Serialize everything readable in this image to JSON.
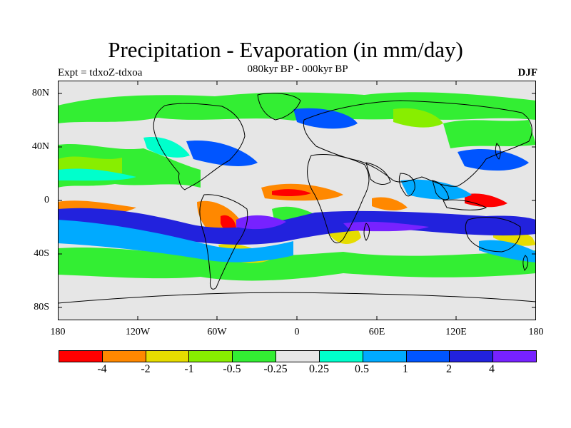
{
  "title": "Precipitation - Evaporation (in mm/day)",
  "subtitle": "080kyr BP - 000kyr BP",
  "expt_label": "Expt = tdxoZ-tdxoa",
  "season": "DJF",
  "lat_labels": [
    "80N",
    "40N",
    "0",
    "40S",
    "80S"
  ],
  "lon_labels": [
    "180",
    "120W",
    "60W",
    "0",
    "60E",
    "120E",
    "180"
  ],
  "colorbar": {
    "colors": [
      "#ff0000",
      "#ff8800",
      "#e6dc00",
      "#88ee00",
      "#33ee33",
      "#e6e6e6",
      "#00ffcc",
      "#00aaff",
      "#0055ff",
      "#2222dd",
      "#7722ff"
    ],
    "labels": [
      "-4",
      "-2",
      "-1",
      "-0.5",
      "-0.25",
      "0.25",
      "0.5",
      "1",
      "2",
      "4"
    ]
  },
  "colors": {
    "background_field": "#e6e6e6",
    "coastline": "#000000"
  }
}
